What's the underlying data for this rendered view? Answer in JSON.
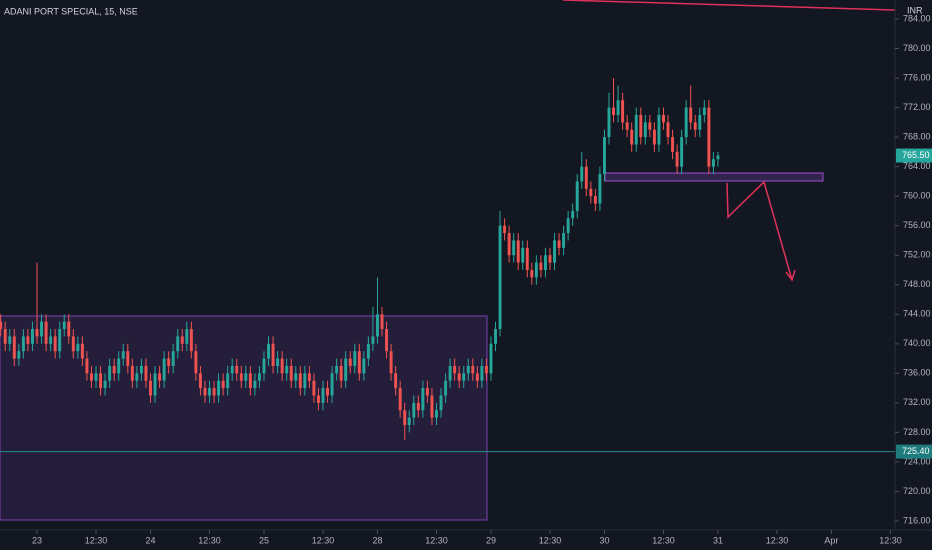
{
  "chart_data": {
    "type": "candlestick",
    "title": "ADANI PORT SPECIAL, 15, NSE",
    "currency": "INR",
    "up_color": "#26a69a",
    "down_color": "#ef5350",
    "xlim": [
      -0.15,
      197
    ],
    "ylim": [
      714.78,
      786.57
    ],
    "yticks": [
      {
        "value": 716,
        "label": "716.00"
      },
      {
        "value": 720,
        "label": "720.00"
      },
      {
        "value": 724,
        "label": "724.00"
      },
      {
        "value": 728,
        "label": "728.00"
      },
      {
        "value": 732,
        "label": "732.00"
      },
      {
        "value": 736,
        "label": "736.00"
      },
      {
        "value": 740,
        "label": "740.00"
      },
      {
        "value": 744,
        "label": "744.00"
      },
      {
        "value": 748,
        "label": "748.00"
      },
      {
        "value": 752,
        "label": "752.00"
      },
      {
        "value": 756,
        "label": "756.00"
      },
      {
        "value": 760,
        "label": "760.00"
      },
      {
        "value": 764,
        "label": "764.00"
      },
      {
        "value": 768,
        "label": "768.00"
      },
      {
        "value": 772,
        "label": "772.00"
      },
      {
        "value": 776,
        "label": "776.00"
      },
      {
        "value": 780,
        "label": "780.00"
      },
      {
        "value": 784,
        "label": "784.00"
      }
    ],
    "xticks": [
      {
        "value": 8,
        "label": "23"
      },
      {
        "value": 21,
        "label": "12:30"
      },
      {
        "value": 33,
        "label": "24"
      },
      {
        "value": 46,
        "label": "12:30"
      },
      {
        "value": 58,
        "label": "25"
      },
      {
        "value": 71,
        "label": "12:30"
      },
      {
        "value": 83,
        "label": "28"
      },
      {
        "value": 96,
        "label": "12:30"
      },
      {
        "value": 108,
        "label": "29"
      },
      {
        "value": 121,
        "label": "12:30"
      },
      {
        "value": 133,
        "label": "30"
      },
      {
        "value": 146,
        "label": "12:30"
      },
      {
        "value": 158,
        "label": "31"
      },
      {
        "value": 171,
        "label": "12:30"
      },
      {
        "value": 183,
        "label": "Apr"
      },
      {
        "value": 196,
        "label": "12:30"
      }
    ],
    "last_price": {
      "value": 765.5,
      "label": "765.50"
    },
    "hline": {
      "value": 725.4,
      "label": "725.40"
    },
    "candles": [
      [
        743,
        744,
        741,
        742
      ],
      [
        742,
        743,
        739,
        740
      ],
      [
        740,
        742,
        739,
        741
      ],
      [
        741,
        742,
        737,
        738
      ],
      [
        738,
        740,
        737,
        739
      ],
      [
        739,
        742,
        738,
        741
      ],
      [
        741,
        742,
        739,
        740
      ],
      [
        740,
        743,
        739,
        742
      ],
      [
        742,
        751,
        740,
        741
      ],
      [
        741,
        744,
        740,
        743
      ],
      [
        743,
        744,
        739,
        740
      ],
      [
        740,
        742,
        739,
        741
      ],
      [
        741,
        742,
        738,
        739
      ],
      [
        739,
        743,
        738,
        742
      ],
      [
        742,
        744,
        741,
        743
      ],
      [
        743,
        744,
        740,
        741
      ],
      [
        741,
        742,
        738,
        739
      ],
      [
        739,
        741,
        738,
        740
      ],
      [
        740,
        741,
        737,
        738
      ],
      [
        738,
        739,
        735,
        736
      ],
      [
        736,
        737,
        734,
        735
      ],
      [
        735,
        737,
        734,
        736
      ],
      [
        736,
        737,
        733,
        734
      ],
      [
        734,
        736,
        733,
        735
      ],
      [
        735,
        738,
        734,
        737
      ],
      [
        737,
        738,
        735,
        736
      ],
      [
        736,
        739,
        735,
        738
      ],
      [
        738,
        740,
        737,
        739
      ],
      [
        739,
        740,
        736,
        737
      ],
      [
        737,
        738,
        734,
        735
      ],
      [
        735,
        737,
        734,
        736
      ],
      [
        736,
        738,
        735,
        737
      ],
      [
        737,
        738,
        734,
        735
      ],
      [
        735,
        736,
        732,
        733
      ],
      [
        733,
        737,
        732,
        736
      ],
      [
        736,
        737,
        734,
        735
      ],
      [
        735,
        739,
        734,
        738
      ],
      [
        738,
        739,
        736,
        737
      ],
      [
        737,
        740,
        736,
        739
      ],
      [
        739,
        742,
        738,
        741
      ],
      [
        741,
        742,
        739,
        740
      ],
      [
        740,
        743,
        739,
        742
      ],
      [
        742,
        743,
        738,
        739
      ],
      [
        739,
        740,
        735,
        736
      ],
      [
        736,
        737,
        733,
        734
      ],
      [
        734,
        735,
        732,
        733
      ],
      [
        733,
        735,
        732,
        734
      ],
      [
        734,
        735,
        732,
        733
      ],
      [
        733,
        736,
        732,
        735
      ],
      [
        735,
        736,
        733,
        734
      ],
      [
        734,
        737,
        733,
        736
      ],
      [
        736,
        738,
        735,
        737
      ],
      [
        737,
        738,
        735,
        736
      ],
      [
        736,
        737,
        734,
        735
      ],
      [
        735,
        737,
        734,
        736
      ],
      [
        736,
        737,
        733,
        734
      ],
      [
        734,
        736,
        733,
        735
      ],
      [
        735,
        737,
        734,
        736
      ],
      [
        736,
        739,
        735,
        738
      ],
      [
        738,
        741,
        737,
        740
      ],
      [
        740,
        741,
        736,
        737
      ],
      [
        737,
        739,
        736,
        738
      ],
      [
        738,
        739,
        735,
        736
      ],
      [
        736,
        738,
        735,
        737
      ],
      [
        737,
        738,
        734,
        735
      ],
      [
        735,
        737,
        734,
        736
      ],
      [
        736,
        737,
        733,
        734
      ],
      [
        734,
        737,
        733,
        736
      ],
      [
        736,
        737,
        734,
        735
      ],
      [
        735,
        736,
        732,
        733
      ],
      [
        733,
        734,
        731,
        732
      ],
      [
        732,
        735,
        731,
        734
      ],
      [
        734,
        735,
        732,
        733
      ],
      [
        733,
        737,
        732,
        736
      ],
      [
        736,
        738,
        735,
        737
      ],
      [
        737,
        738,
        734,
        735
      ],
      [
        735,
        739,
        734,
        738
      ],
      [
        738,
        739,
        736,
        737
      ],
      [
        737,
        740,
        736,
        739
      ],
      [
        739,
        740,
        735,
        736
      ],
      [
        736,
        739,
        735,
        738
      ],
      [
        738,
        741,
        737,
        740
      ],
      [
        740,
        745,
        739,
        741
      ],
      [
        741,
        749,
        740,
        744
      ],
      [
        744,
        745,
        741,
        742
      ],
      [
        742,
        743,
        738,
        739
      ],
      [
        739,
        740,
        735,
        736
      ],
      [
        736,
        737,
        733,
        734
      ],
      [
        734,
        735,
        730,
        731
      ],
      [
        731,
        732,
        727,
        729
      ],
      [
        729,
        731,
        728,
        730
      ],
      [
        730,
        733,
        729,
        732
      ],
      [
        732,
        733,
        730,
        731
      ],
      [
        731,
        735,
        730,
        734
      ],
      [
        734,
        735,
        732,
        733
      ],
      [
        733,
        734,
        729,
        730
      ],
      [
        730,
        732,
        729,
        731
      ],
      [
        731,
        734,
        730,
        733
      ],
      [
        733,
        736,
        732,
        735
      ],
      [
        735,
        738,
        734,
        737
      ],
      [
        737,
        738,
        735,
        736
      ],
      [
        736,
        737,
        734,
        735
      ],
      [
        735,
        737,
        734,
        736
      ],
      [
        736,
        738,
        735,
        737
      ],
      [
        737,
        738,
        735,
        736
      ],
      [
        736,
        737,
        734,
        735
      ],
      [
        735,
        738,
        734,
        737
      ],
      [
        737,
        738,
        735,
        736
      ],
      [
        736,
        741,
        735,
        740
      ],
      [
        740,
        743,
        739,
        742
      ],
      [
        742,
        758,
        741,
        756
      ],
      [
        756,
        757,
        754,
        755
      ],
      [
        755,
        756,
        751,
        752
      ],
      [
        752,
        755,
        751,
        754
      ],
      [
        754,
        755,
        750,
        751
      ],
      [
        751,
        754,
        750,
        753
      ],
      [
        753,
        754,
        749,
        750
      ],
      [
        750,
        751,
        748,
        749
      ],
      [
        749,
        752,
        748,
        751
      ],
      [
        751,
        752,
        749,
        750
      ],
      [
        750,
        753,
        749,
        752
      ],
      [
        752,
        753,
        750,
        751
      ],
      [
        751,
        755,
        750,
        754
      ],
      [
        754,
        755,
        752,
        753
      ],
      [
        753,
        756,
        752,
        755
      ],
      [
        755,
        758,
        754,
        757
      ],
      [
        757,
        759,
        756,
        758
      ],
      [
        758,
        763,
        757,
        762
      ],
      [
        762,
        766,
        761,
        764
      ],
      [
        764,
        765,
        760,
        761
      ],
      [
        761,
        762,
        759,
        760
      ],
      [
        760,
        761,
        758,
        759
      ],
      [
        759,
        764,
        758,
        763
      ],
      [
        763,
        769,
        762,
        768
      ],
      [
        768,
        774,
        767,
        772
      ],
      [
        772,
        776,
        770,
        771
      ],
      [
        771,
        775,
        770,
        773
      ],
      [
        773,
        774,
        769,
        770
      ],
      [
        770,
        771,
        768,
        769
      ],
      [
        769,
        770,
        766,
        767
      ],
      [
        767,
        772,
        766,
        771
      ],
      [
        771,
        772,
        767,
        768
      ],
      [
        768,
        771,
        767,
        770
      ],
      [
        770,
        771,
        768,
        769
      ],
      [
        769,
        770,
        766,
        767
      ],
      [
        767,
        772,
        766,
        771
      ],
      [
        771,
        772,
        769,
        770
      ],
      [
        770,
        771,
        767,
        768
      ],
      [
        768,
        769,
        765,
        766
      ],
      [
        766,
        767,
        763,
        764
      ],
      [
        764,
        769,
        763,
        768
      ],
      [
        768,
        773,
        767,
        772
      ],
      [
        772,
        775,
        769,
        770
      ],
      [
        770,
        771,
        768,
        769
      ],
      [
        769,
        772,
        768,
        771
      ],
      [
        771,
        773,
        770,
        772
      ],
      [
        772,
        773,
        763,
        764
      ],
      [
        764,
        766,
        763,
        765
      ],
      [
        765,
        766,
        764,
        765.5
      ]
    ]
  }
}
